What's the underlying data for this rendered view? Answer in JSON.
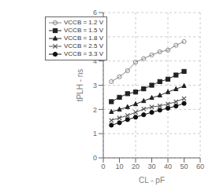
{
  "chart_data": {
    "type": "line",
    "xlabel": "CL - pF",
    "ylabel": "tPLH - ns",
    "xlim": [
      0,
      60
    ],
    "ylim": [
      0,
      6
    ],
    "xticks": [
      0,
      10,
      20,
      30,
      40,
      50,
      60
    ],
    "yticks": [
      0,
      1,
      2,
      3,
      4,
      5,
      6
    ],
    "grid": true,
    "legend": "upper left",
    "series": [
      {
        "name": "VCCB = 1.2 V",
        "color": "#888888",
        "marker": "open_circle",
        "x": [
          5,
          10,
          15,
          20,
          25,
          30,
          35,
          40,
          45,
          50
        ],
        "values": [
          3.15,
          3.35,
          3.6,
          3.95,
          4.1,
          4.25,
          4.38,
          4.45,
          4.65,
          4.8
        ]
      },
      {
        "name": "VCCB = 1.5 V",
        "color": "#222222",
        "marker": "square",
        "x": [
          5,
          10,
          15,
          20,
          25,
          30,
          35,
          40,
          45,
          50
        ],
        "values": [
          2.32,
          2.5,
          2.65,
          2.72,
          2.85,
          3.0,
          3.15,
          3.25,
          3.42,
          3.57
        ]
      },
      {
        "name": "VCCB = 1.8 V",
        "color": "#222222",
        "marker": "triangle",
        "x": [
          5,
          10,
          15,
          20,
          25,
          30,
          35,
          40,
          45,
          50
        ],
        "values": [
          1.9,
          2.0,
          2.1,
          2.22,
          2.35,
          2.48,
          2.58,
          2.72,
          2.84,
          2.97
        ]
      },
      {
        "name": "VCCB = 2.5 V",
        "color": "#555555",
        "marker": "x",
        "x": [
          5,
          10,
          15,
          20,
          25,
          30,
          35,
          40,
          45,
          50
        ],
        "values": [
          1.55,
          1.65,
          1.75,
          1.88,
          2.02,
          2.1,
          2.15,
          2.22,
          2.32,
          2.45
        ]
      },
      {
        "name": "VCCB = 3.3 V",
        "color": "#111111",
        "marker": "circle",
        "x": [
          5,
          10,
          15,
          20,
          25,
          30,
          35,
          40,
          45,
          50
        ],
        "values": [
          1.35,
          1.45,
          1.58,
          1.68,
          1.78,
          1.88,
          1.97,
          2.05,
          2.14,
          2.25
        ]
      }
    ]
  }
}
